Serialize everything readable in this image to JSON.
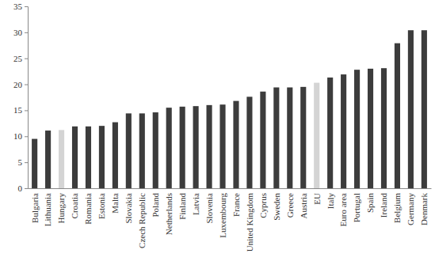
{
  "chart_data": {
    "type": "bar",
    "categories": [
      "Bulgaria",
      "Lithuania",
      "Hungary",
      "Croatia",
      "Romania",
      "Estonia",
      "Malta",
      "Slovakia",
      "Czech Republic",
      "Poland",
      "Netherlands",
      "Finland",
      "Latvia",
      "Slovenia",
      "Luxembourg",
      "France",
      "United Kingdom",
      "Cyprus",
      "Sweden",
      "Greece",
      "Austria",
      "EU",
      "Italy",
      "Euro area",
      "Portugal",
      "Spain",
      "Ireland",
      "Belgium",
      "Germany",
      "Denmark"
    ],
    "values": [
      9.5,
      11.1,
      11.2,
      11.9,
      11.9,
      12.0,
      12.7,
      14.4,
      14.4,
      14.6,
      15.5,
      15.7,
      15.8,
      16.0,
      16.1,
      16.8,
      17.6,
      18.6,
      19.4,
      19.4,
      19.5,
      20.3,
      21.3,
      21.9,
      22.8,
      23.0,
      23.1,
      27.9,
      30.4,
      30.4
    ],
    "colors": [
      "#3c3c3c",
      "#3c3c3c",
      "#d4d4d4",
      "#3c3c3c",
      "#3c3c3c",
      "#3c3c3c",
      "#3c3c3c",
      "#3c3c3c",
      "#3c3c3c",
      "#3c3c3c",
      "#3c3c3c",
      "#3c3c3c",
      "#3c3c3c",
      "#3c3c3c",
      "#3c3c3c",
      "#3c3c3c",
      "#3c3c3c",
      "#3c3c3c",
      "#3c3c3c",
      "#3c3c3c",
      "#3c3c3c",
      "#d4d4d4",
      "#3c3c3c",
      "#3c3c3c",
      "#3c3c3c",
      "#3c3c3c",
      "#3c3c3c",
      "#3c3c3c",
      "#3c3c3c",
      "#3c3c3c"
    ],
    "ylim": [
      0,
      35
    ],
    "yticks": [
      0,
      5,
      10,
      15,
      20,
      25,
      30,
      35
    ],
    "grid": false
  }
}
